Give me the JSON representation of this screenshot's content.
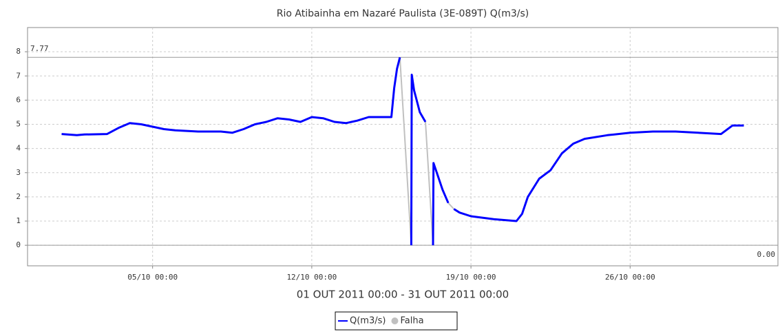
{
  "chart_data": {
    "type": "line",
    "title": "Rio Atibainha em Nazaré Paulista (3E-089T) Q(m3/s)",
    "x_label": "01 OUT 2011 00:00 - 31 OUT 2011 00:00",
    "xlim": [
      "29/09 12:00",
      "01/11 12:00"
    ],
    "xticks": [
      "05/10 00:00",
      "12/10 00:00",
      "19/10 00:00",
      "26/10 00:00"
    ],
    "ylim": [
      -0.85,
      9.0
    ],
    "yticks": [
      0,
      1,
      2,
      3,
      4,
      5,
      6,
      7,
      8
    ],
    "grid": true,
    "max_line": {
      "value": 7.77,
      "label": "7.77"
    },
    "min_line": {
      "value": 0,
      "label": "0.00"
    },
    "series": [
      {
        "name": "Q(m3/s)",
        "color": "#0000ff",
        "legend_symbol": "line",
        "x": [
          "01/10 00:00",
          "01/10 16:00",
          "02/10 00:00",
          "03/10 00:00",
          "03/10 12:00",
          "04/10 00:00",
          "04/10 12:00",
          "05/10 00:00",
          "05/10 12:00",
          "06/10 00:00",
          "07/10 00:00",
          "08/10 00:00",
          "08/10 12:00",
          "09/10 00:00",
          "09/10 12:00",
          "10/10 00:00",
          "10/10 12:00",
          "11/10 00:00",
          "11/10 12:00",
          "12/10 00:00",
          "12/10 12:00",
          "13/10 00:00",
          "13/10 12:00",
          "14/10 00:00",
          "14/10 12:00",
          "15/10 00:00",
          "15/10 12:00",
          "15/10 15:00",
          "15/10 18:00",
          "15/10 21:00",
          "16/10 03:00",
          "16/10 09:00",
          "16/10 09:30",
          "16/10 12:00",
          "16/10 18:00",
          "17/10 00:00",
          "17/10 04:00",
          "17/10 08:00",
          "17/10 08:30",
          "17/10 12:00",
          "17/10 18:00",
          "18/10 00:00",
          "18/10 03:00",
          "18/10 06:00",
          "18/10 12:00",
          "19/10 00:00",
          "20/10 00:00",
          "21/10 00:00",
          "21/10 06:00",
          "21/10 12:00",
          "22/10 00:00",
          "22/10 12:00",
          "23/10 00:00",
          "23/10 12:00",
          "24/10 00:00",
          "25/10 00:00",
          "26/10 00:00",
          "27/10 00:00",
          "28/10 00:00",
          "29/10 00:00",
          "30/10 00:00",
          "30/10 12:00",
          "31/10 00:00"
        ],
        "values": [
          4.6,
          4.55,
          4.58,
          4.6,
          4.85,
          5.05,
          5.0,
          4.9,
          4.8,
          4.75,
          4.7,
          4.7,
          4.65,
          4.8,
          5.0,
          5.1,
          5.25,
          5.2,
          5.1,
          5.3,
          5.25,
          5.1,
          5.05,
          5.15,
          5.3,
          5.3,
          5.3,
          6.5,
          7.3,
          7.77,
          null,
          0,
          7.05,
          6.4,
          5.5,
          5.1,
          null,
          0,
          3.4,
          3.0,
          2.3,
          1.75,
          null,
          1.5,
          1.35,
          1.2,
          1.08,
          1.0,
          1.3,
          2.0,
          2.75,
          3.1,
          3.8,
          4.2,
          4.4,
          4.55,
          4.65,
          4.7,
          4.7,
          4.65,
          4.6,
          4.95,
          4.95
        ]
      },
      {
        "name": "Falha",
        "color": "#c0c0c0",
        "legend_symbol": "circle",
        "x": [
          "15/10 21:00",
          "16/10 09:00",
          "16/10 12:00",
          "17/10 00:00",
          "17/10 08:00",
          "17/10 16:00",
          "18/10 00:00",
          "18/10 06:00"
        ],
        "values": [
          7.77,
          0,
          null,
          5.1,
          0,
          null,
          1.75,
          1.5
        ]
      }
    ]
  }
}
